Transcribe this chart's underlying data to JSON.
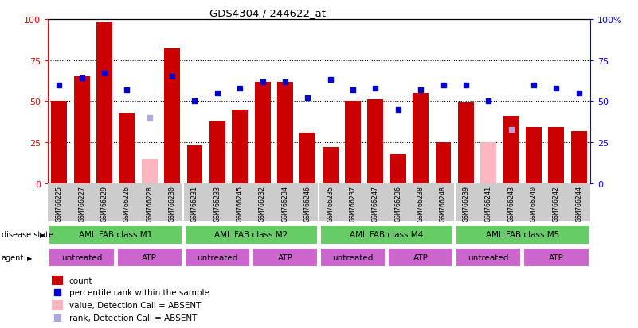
{
  "title": "GDS4304 / 244622_at",
  "samples": [
    "GSM766225",
    "GSM766227",
    "GSM766229",
    "GSM766226",
    "GSM766228",
    "GSM766230",
    "GSM766231",
    "GSM766233",
    "GSM766245",
    "GSM766232",
    "GSM766234",
    "GSM766246",
    "GSM766235",
    "GSM766237",
    "GSM766247",
    "GSM766236",
    "GSM766238",
    "GSM766248",
    "GSM766239",
    "GSM766241",
    "GSM766243",
    "GSM766240",
    "GSM766242",
    "GSM766244"
  ],
  "count_values": [
    50,
    65,
    98,
    43,
    15,
    82,
    23,
    38,
    45,
    62,
    62,
    31,
    22,
    50,
    51,
    18,
    55,
    25,
    49,
    25,
    41,
    34,
    34,
    32
  ],
  "count_absent": [
    false,
    false,
    false,
    false,
    true,
    false,
    false,
    false,
    false,
    false,
    false,
    false,
    false,
    false,
    false,
    false,
    false,
    false,
    false,
    true,
    false,
    false,
    false,
    false
  ],
  "rank_values": [
    60,
    64,
    67,
    57,
    40,
    65,
    50,
    55,
    58,
    62,
    62,
    52,
    63,
    57,
    58,
    45,
    57,
    60,
    60,
    50,
    33,
    60,
    58,
    55
  ],
  "rank_absent": [
    false,
    false,
    false,
    false,
    true,
    false,
    false,
    false,
    false,
    false,
    false,
    false,
    false,
    false,
    false,
    false,
    false,
    false,
    false,
    false,
    true,
    false,
    false,
    false
  ],
  "disease_state_groups": [
    {
      "label": "AML FAB class M1",
      "start": 0,
      "end": 6
    },
    {
      "label": "AML FAB class M2",
      "start": 6,
      "end": 12
    },
    {
      "label": "AML FAB class M4",
      "start": 12,
      "end": 18
    },
    {
      "label": "AML FAB class M5",
      "start": 18,
      "end": 24
    }
  ],
  "agent_groups": [
    {
      "label": "untreated",
      "start": 0,
      "end": 3
    },
    {
      "label": "ATP",
      "start": 3,
      "end": 6
    },
    {
      "label": "untreated",
      "start": 6,
      "end": 9
    },
    {
      "label": "ATP",
      "start": 9,
      "end": 12
    },
    {
      "label": "untreated",
      "start": 12,
      "end": 15
    },
    {
      "label": "ATP",
      "start": 15,
      "end": 18
    },
    {
      "label": "untreated",
      "start": 18,
      "end": 21
    },
    {
      "label": "ATP",
      "start": 21,
      "end": 24
    }
  ],
  "bar_color": "#CC0000",
  "bar_absent_color": "#FFB6C1",
  "rank_color": "#0000CC",
  "rank_absent_color": "#AAAADD",
  "ds_color": "#66CC66",
  "ag_color": "#CC66CC",
  "legend_items": [
    {
      "color": "#CC0000",
      "label": "count",
      "type": "rect"
    },
    {
      "color": "#0000CC",
      "label": "percentile rank within the sample",
      "type": "square"
    },
    {
      "color": "#FFB6C1",
      "label": "value, Detection Call = ABSENT",
      "type": "rect"
    },
    {
      "color": "#AAAADD",
      "label": "rank, Detection Call = ABSENT",
      "type": "square"
    }
  ],
  "yticks": [
    0,
    25,
    50,
    75,
    100
  ],
  "ytick_labels_left": [
    "0",
    "25",
    "50",
    "75",
    "100"
  ],
  "ytick_labels_right": [
    "0",
    "25",
    "50",
    "75",
    "100%"
  ]
}
